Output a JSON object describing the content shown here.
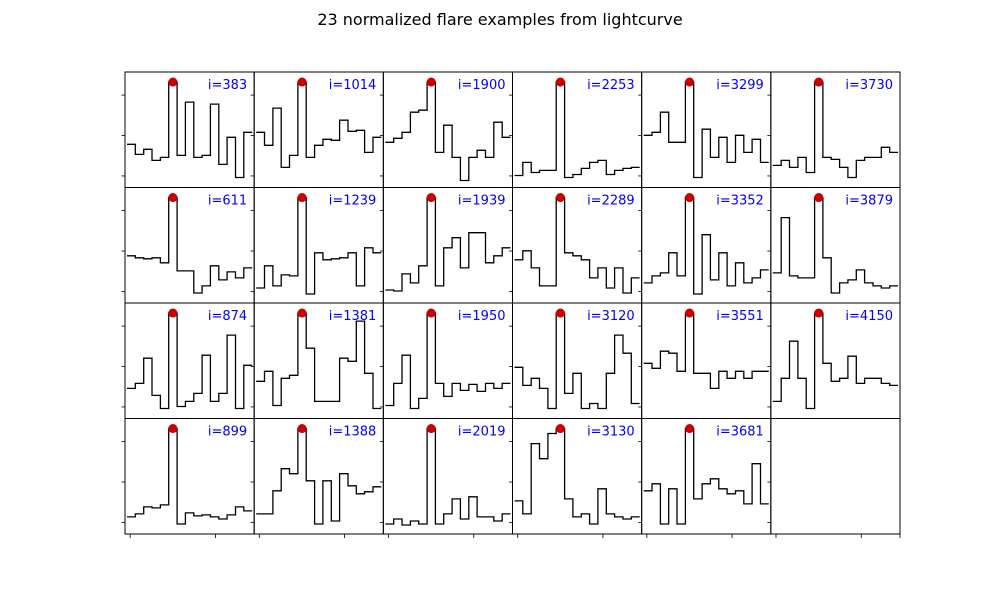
{
  "title": "23 normalized flare examples from lightcurve",
  "colors": {
    "line": "#000000",
    "peak": "#cc0000",
    "label": "#0000ff"
  },
  "layout_info": {
    "rows": 4,
    "cols": 6,
    "order": "column-major"
  },
  "chart_data": {
    "type": "line",
    "drawstyle": "steps",
    "ylim": [
      0,
      1.05
    ],
    "panels": [
      {
        "label": "i=383",
        "peak": [
          6,
          1.0
        ],
        "y": [
          0.38,
          0.28,
          0.33,
          0.22,
          0.25,
          1.0,
          0.27,
          0.8,
          0.25,
          0.27,
          0.78,
          0.18,
          0.45,
          0.05,
          0.5
        ]
      },
      {
        "label": "i=611",
        "peak": [
          6,
          1.0
        ],
        "y": [
          0.42,
          0.4,
          0.39,
          0.4,
          0.35,
          1.0,
          0.27,
          0.27,
          0.05,
          0.12,
          0.32,
          0.18,
          0.26,
          0.2,
          0.3
        ]
      },
      {
        "label": "i=874",
        "peak": [
          6,
          1.0
        ],
        "y": [
          0.25,
          0.3,
          0.55,
          0.18,
          0.05,
          1.0,
          0.07,
          0.12,
          0.2,
          0.58,
          0.12,
          0.2,
          0.78,
          0.05,
          0.48
        ]
      },
      {
        "label": "i=899",
        "peak": [
          6,
          1.0
        ],
        "y": [
          0.12,
          0.15,
          0.22,
          0.21,
          0.24,
          1.0,
          0.05,
          0.16,
          0.13,
          0.14,
          0.12,
          0.1,
          0.14,
          0.22,
          0.18
        ]
      },
      {
        "label": "i=1014",
        "peak": [
          6,
          1.0
        ],
        "y": [
          0.5,
          0.37,
          0.74,
          0.15,
          0.27,
          1.0,
          0.25,
          0.37,
          0.43,
          0.42,
          0.62,
          0.51,
          0.52,
          0.3,
          0.45
        ]
      },
      {
        "label": "i=1239",
        "peak": [
          6,
          1.0
        ],
        "y": [
          0.1,
          0.32,
          0.12,
          0.23,
          0.22,
          1.0,
          0.04,
          0.45,
          0.38,
          0.39,
          0.4,
          0.45,
          0.12,
          0.5,
          0.45
        ]
      },
      {
        "label": "i=1381",
        "peak": [
          6,
          1.0
        ],
        "y": [
          0.32,
          0.42,
          0.08,
          0.35,
          0.38,
          1.0,
          0.65,
          0.12,
          0.12,
          0.12,
          0.55,
          0.52,
          0.92,
          0.4,
          0.05
        ]
      },
      {
        "label": "i=1388",
        "peak": [
          6,
          1.0
        ],
        "y": [
          0.15,
          0.15,
          0.38,
          0.6,
          0.55,
          1.0,
          0.48,
          0.05,
          0.48,
          0.08,
          0.55,
          0.43,
          0.35,
          0.37,
          0.42
        ]
      },
      {
        "label": "i=1900",
        "peak": [
          6,
          1.0
        ],
        "y": [
          0.4,
          0.44,
          0.5,
          0.7,
          0.72,
          1.0,
          0.3,
          0.57,
          0.25,
          0.02,
          0.25,
          0.32,
          0.25,
          0.6,
          0.45
        ]
      },
      {
        "label": "i=1939",
        "peak": [
          6,
          1.0
        ],
        "y": [
          0.08,
          0.07,
          0.24,
          0.15,
          0.32,
          1.0,
          0.12,
          0.5,
          0.6,
          0.3,
          0.65,
          0.65,
          0.35,
          0.42,
          0.5
        ]
      },
      {
        "label": "i=1950",
        "peak": [
          6,
          1.0
        ],
        "y": [
          0.08,
          0.3,
          0.58,
          0.05,
          0.15,
          1.0,
          0.3,
          0.17,
          0.3,
          0.23,
          0.29,
          0.22,
          0.3,
          0.25,
          0.3
        ]
      },
      {
        "label": "i=2019",
        "peak": [
          6,
          1.0
        ],
        "y": [
          0.05,
          0.1,
          0.04,
          0.08,
          0.05,
          1.0,
          0.05,
          0.15,
          0.3,
          0.1,
          0.32,
          0.12,
          0.12,
          0.08,
          0.15
        ]
      },
      {
        "label": "i=2253",
        "peak": [
          6,
          1.0
        ],
        "y": [
          0.07,
          0.2,
          0.1,
          0.12,
          0.12,
          1.0,
          0.05,
          0.08,
          0.14,
          0.2,
          0.22,
          0.08,
          0.12,
          0.14,
          0.15
        ]
      },
      {
        "label": "i=2289",
        "peak": [
          6,
          1.0
        ],
        "y": [
          0.38,
          0.47,
          0.3,
          0.12,
          0.12,
          1.0,
          0.45,
          0.42,
          0.38,
          0.2,
          0.3,
          0.1,
          0.3,
          0.05,
          0.2
        ]
      },
      {
        "label": "i=3120",
        "peak": [
          6,
          1.0
        ],
        "y": [
          0.46,
          0.28,
          0.35,
          0.25,
          0.05,
          1.0,
          0.2,
          0.4,
          0.05,
          0.1,
          0.05,
          0.4,
          0.78,
          0.6,
          0.1
        ]
      },
      {
        "label": "i=3130",
        "peak": [
          6,
          1.0
        ],
        "y": [
          0.28,
          0.15,
          0.85,
          0.7,
          0.95,
          1.0,
          0.3,
          0.12,
          0.15,
          0.05,
          0.4,
          0.15,
          0.12,
          0.1,
          0.12
        ]
      },
      {
        "label": "i=3299",
        "peak": [
          6,
          1.0
        ],
        "y": [
          0.47,
          0.5,
          0.7,
          0.4,
          0.4,
          1.0,
          0.05,
          0.53,
          0.25,
          0.45,
          0.2,
          0.47,
          0.3,
          0.43,
          0.2
        ]
      },
      {
        "label": "i=3352",
        "peak": [
          6,
          1.0
        ],
        "y": [
          0.15,
          0.22,
          0.25,
          0.45,
          0.22,
          1.0,
          0.04,
          0.63,
          0.18,
          0.45,
          0.12,
          0.35,
          0.15,
          0.2,
          0.28
        ]
      },
      {
        "label": "i=3551",
        "peak": [
          6,
          1.0
        ],
        "y": [
          0.5,
          0.45,
          0.62,
          0.6,
          0.42,
          1.0,
          0.4,
          0.4,
          0.25,
          0.42,
          0.35,
          0.42,
          0.35,
          0.42,
          0.42
        ]
      },
      {
        "label": "i=3681",
        "peak": [
          6,
          1.0
        ],
        "y": [
          0.38,
          0.45,
          0.05,
          0.4,
          0.05,
          1.0,
          0.3,
          0.45,
          0.5,
          0.4,
          0.35,
          0.38,
          0.25,
          0.65,
          0.25
        ]
      },
      {
        "label": "i=3730",
        "peak": [
          6,
          1.0
        ],
        "y": [
          0.17,
          0.22,
          0.15,
          0.25,
          0.1,
          1.0,
          0.25,
          0.23,
          0.15,
          0.05,
          0.22,
          0.25,
          0.25,
          0.35,
          0.3
        ]
      },
      {
        "label": "i=3879",
        "peak": [
          6,
          1.0
        ],
        "y": [
          0.25,
          0.8,
          0.22,
          0.2,
          0.2,
          1.0,
          0.4,
          0.05,
          0.15,
          0.18,
          0.28,
          0.15,
          0.12,
          0.1,
          0.12
        ]
      },
      {
        "label": "i=4150",
        "peak": [
          6,
          1.0
        ],
        "y": [
          0.12,
          0.35,
          0.72,
          0.35,
          0.05,
          1.0,
          0.5,
          0.32,
          0.35,
          0.57,
          0.3,
          0.35,
          0.35,
          0.3,
          0.28
        ]
      }
    ]
  }
}
